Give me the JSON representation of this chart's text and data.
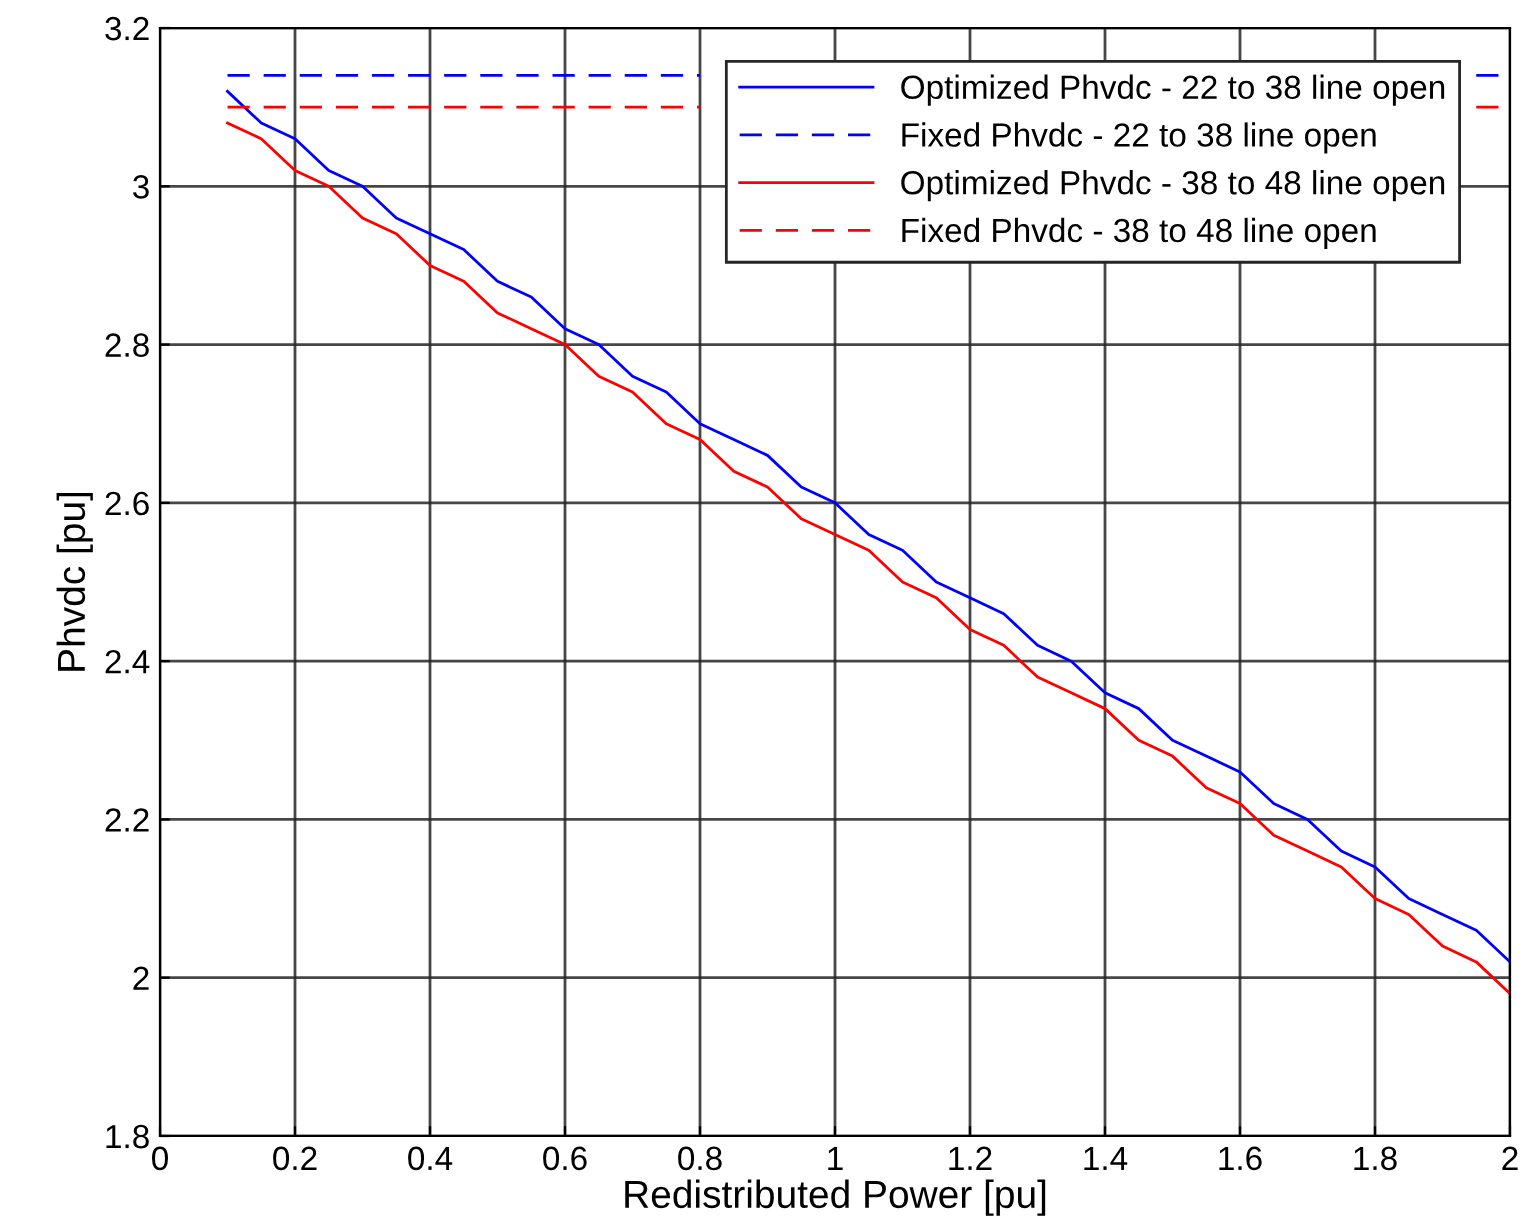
{
  "chart_data": {
    "type": "line",
    "xlabel": "Redistributed Power [pu]",
    "ylabel": "Phvdc [pu]",
    "x": [
      0.1,
      0.15,
      0.2,
      0.25,
      0.3,
      0.35,
      0.4,
      0.45,
      0.5,
      0.55,
      0.6,
      0.65,
      0.7,
      0.75,
      0.8,
      0.85,
      0.9,
      0.95,
      1.0,
      1.05,
      1.1,
      1.15,
      1.2,
      1.25,
      1.3,
      1.35,
      1.4,
      1.45,
      1.5,
      1.55,
      1.6,
      1.65,
      1.7,
      1.75,
      1.8,
      1.85,
      1.9,
      1.95,
      2.0
    ],
    "series": [
      {
        "name": "Optimized Phvdc - 22 to 38 line open",
        "color": "#0000ff",
        "line_style": "solid",
        "values": [
          3.12,
          3.08,
          3.06,
          3.02,
          3.0,
          2.96,
          2.94,
          2.92,
          2.88,
          2.86,
          2.82,
          2.8,
          2.76,
          2.74,
          2.7,
          2.68,
          2.66,
          2.62,
          2.6,
          2.56,
          2.54,
          2.5,
          2.48,
          2.46,
          2.42,
          2.4,
          2.36,
          2.34,
          2.3,
          2.28,
          2.26,
          2.22,
          2.2,
          2.16,
          2.14,
          2.1,
          2.08,
          2.06,
          2.02
        ]
      },
      {
        "name": "Fixed Phvdc - 22 to 38 line open",
        "color": "#0000ff",
        "line_style": "dashed",
        "values": [
          3.14,
          3.14,
          3.14,
          3.14,
          3.14,
          3.14,
          3.14,
          3.14,
          3.14,
          3.14,
          3.14,
          3.14,
          3.14,
          3.14,
          3.14,
          null,
          null,
          null,
          null,
          null,
          null,
          null,
          null,
          null,
          null,
          null,
          null,
          null,
          null,
          null,
          null,
          null,
          null,
          null,
          null,
          null,
          null,
          3.14,
          3.14
        ]
      },
      {
        "name": "Optimized Phvdc - 38 to 48 line open",
        "color": "#ff0000",
        "line_style": "solid",
        "values": [
          3.08,
          3.06,
          3.02,
          3.0,
          2.96,
          2.94,
          2.9,
          2.88,
          2.84,
          2.82,
          2.8,
          2.76,
          2.74,
          2.7,
          2.68,
          2.64,
          2.62,
          2.58,
          2.56,
          2.54,
          2.5,
          2.48,
          2.44,
          2.42,
          2.38,
          2.36,
          2.34,
          2.3,
          2.28,
          2.24,
          2.22,
          2.18,
          2.16,
          2.14,
          2.1,
          2.08,
          2.04,
          2.02,
          1.98
        ]
      },
      {
        "name": "Fixed Phvdc - 38 to 48 line open",
        "color": "#ff0000",
        "line_style": "dashed",
        "values": [
          3.1,
          3.1,
          3.1,
          3.1,
          3.1,
          3.1,
          3.1,
          3.1,
          3.1,
          3.1,
          3.1,
          3.1,
          3.1,
          3.1,
          3.1,
          null,
          null,
          null,
          null,
          null,
          null,
          null,
          null,
          null,
          null,
          null,
          null,
          null,
          null,
          null,
          null,
          null,
          null,
          null,
          null,
          null,
          null,
          3.1,
          3.1
        ]
      }
    ],
    "xlim": [
      0,
      2
    ],
    "xticks": [
      0,
      0.2,
      0.4,
      0.6,
      0.8,
      1,
      1.2,
      1.4,
      1.6,
      1.8,
      2
    ],
    "ylim": [
      1.8,
      3.2
    ],
    "yticks": [
      1.8,
      2,
      2.2,
      2.4,
      2.6,
      2.8,
      3,
      3.2
    ],
    "grid": true,
    "legend": "top right"
  }
}
